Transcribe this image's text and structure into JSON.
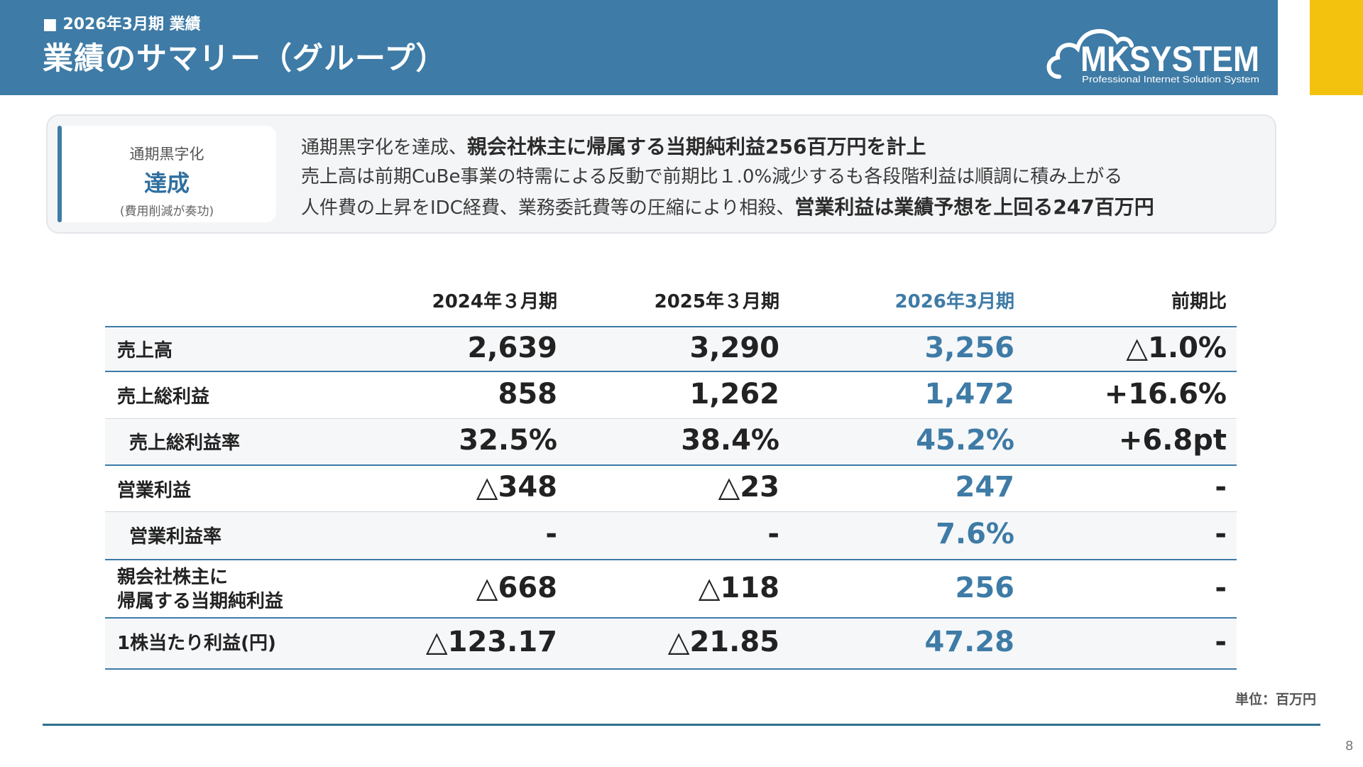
{
  "header": {
    "subtitle": "■ 2026年3月期  業績",
    "title": "業績のサマリー（グループ）",
    "logo_name": "MKSYSTEM",
    "logo_tagline": "Professional Internet Solution System"
  },
  "summary": {
    "badge": {
      "top": "通期黒字化",
      "main": "達成",
      "note": "(費用削減が奏功)"
    },
    "line1": {
      "text": "通期黒字化を達成、",
      "bold": "親会社株主に帰属する当期純利益256百万円を計上"
    },
    "line2": {
      "text": "売上高は前期CuBe事業の特需による反動で前期比１.0%減少するも各段階利益は順調に積み上がる"
    },
    "line3": {
      "text": "人件費の上昇をIDC経費、業務委託費等の圧縮により相殺、",
      "bold": "営業利益は業績予想を上回る247百万円"
    }
  },
  "table": {
    "columns": [
      "2024年３月期",
      "2025年３月期",
      "2026年3月期",
      "前期比"
    ],
    "rows": [
      {
        "label": "売上高",
        "values": [
          "2,639",
          "3,290",
          "3,256",
          "△1.0%"
        ]
      },
      {
        "label": "売上総利益",
        "values": [
          "858",
          "1,262",
          "1,472",
          "+16.6%"
        ]
      },
      {
        "label": "売上総利益率",
        "values": [
          "32.5%",
          "38.4%",
          "45.2%",
          "+6.8pt"
        ]
      },
      {
        "label": "営業利益",
        "values": [
          "△348",
          "△23",
          "247",
          "-"
        ]
      },
      {
        "label": "営業利益率",
        "values": [
          "-",
          "-",
          "7.6%",
          "-"
        ]
      },
      {
        "label_line1": "親会社株主に",
        "label_line2": "帰属する当期純利益",
        "values": [
          "△668",
          "△118",
          "256",
          "-"
        ]
      },
      {
        "label": "1株当たり利益(円)",
        "values": [
          "△123.17",
          "△21.85",
          "47.28",
          "-"
        ]
      }
    ]
  },
  "unit": "単位：百万円",
  "page_number": "8",
  "colors": {
    "brand_blue": "#3e7ba6",
    "accent_gold": "#f2c20f"
  }
}
